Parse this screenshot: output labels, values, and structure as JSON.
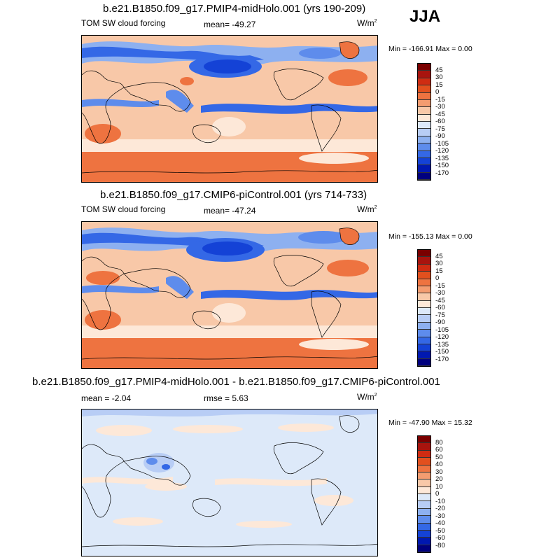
{
  "season": "JJA",
  "panels": [
    {
      "id": "mid-holo",
      "title": "b.e21.B1850.f09_g17.PMIP4-midHolo.001 (yrs 190-209)",
      "left_label": "TOM SW cloud forcing",
      "center_label": "mean= -49.27",
      "units": "W/m",
      "units_exp": "2",
      "minmax": "Min = -166.91 Max =   0.00",
      "colorbar_labels": [
        "45",
        "30",
        "15",
        "0",
        "-15",
        "-30",
        "-45",
        "-60",
        "-75",
        "-90",
        "-105",
        "-120",
        "-135",
        "-150",
        "-170"
      ]
    },
    {
      "id": "pi-control",
      "title": "b.e21.B1850.f09_g17.CMIP6-piControl.001 (yrs 714-733)",
      "left_label": "TOM SW cloud forcing",
      "center_label": "mean= -47.24",
      "units": "W/m",
      "units_exp": "2",
      "minmax": "Min = -155.13 Max =   0.00",
      "colorbar_labels": [
        "45",
        "30",
        "15",
        "0",
        "-15",
        "-30",
        "-45",
        "-60",
        "-75",
        "-90",
        "-105",
        "-120",
        "-135",
        "-150",
        "-170"
      ]
    },
    {
      "id": "difference",
      "title": "b.e21.B1850.f09_g17.PMIP4-midHolo.001 - b.e21.B1850.f09_g17.CMIP6-piControl.001",
      "left_label": "mean =  -2.04",
      "center_label": "rmse =  5.63",
      "units": "W/m",
      "units_exp": "2",
      "minmax": "Min = -47.90 Max =  15.32",
      "colorbar_labels": [
        "80",
        "60",
        "50",
        "40",
        "30",
        "20",
        "10",
        "0",
        "-10",
        "-20",
        "-30",
        "-40",
        "-50",
        "-60",
        "-80"
      ]
    }
  ],
  "colors": {
    "abs_scale": [
      "#7a0000",
      "#a8140e",
      "#cf2c12",
      "#e2501e",
      "#ee7340",
      "#f49c70",
      "#f8c8a8",
      "#fde8d8",
      "#dde9f9",
      "#b8cdf5",
      "#8db0f0",
      "#5e8cec",
      "#3468e6",
      "#1442d6",
      "#0018b0",
      "#00007e"
    ],
    "diff_scale": [
      "#7a0000",
      "#a8140e",
      "#cf2c12",
      "#e2501e",
      "#ee7340",
      "#f49c70",
      "#f8c8a8",
      "#fde8d8",
      "#dde9f9",
      "#b8cdf5",
      "#8db0f0",
      "#5e8cec",
      "#3468e6",
      "#1442d6",
      "#0018b0",
      "#00007e"
    ]
  }
}
